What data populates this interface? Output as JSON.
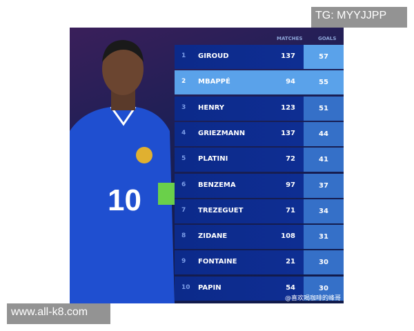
{
  "table": {
    "headers": {
      "matches": "MATCHES",
      "goals": "GOALS"
    },
    "rows": [
      {
        "rank": "1",
        "name": "GIROUD",
        "matches": "137",
        "goals": "57"
      },
      {
        "rank": "2",
        "name": "MBAPPÉ",
        "matches": "94",
        "goals": "55"
      },
      {
        "rank": "3",
        "name": "HENRY",
        "matches": "123",
        "goals": "51"
      },
      {
        "rank": "4",
        "name": "GRIEZMANN",
        "matches": "137",
        "goals": "44"
      },
      {
        "rank": "5",
        "name": "PLATINI",
        "matches": "72",
        "goals": "41"
      },
      {
        "rank": "6",
        "name": "BENZEMA",
        "matches": "97",
        "goals": "37"
      },
      {
        "rank": "7",
        "name": "TREZEGUET",
        "matches": "71",
        "goals": "34"
      },
      {
        "rank": "8",
        "name": "ZIDANE",
        "matches": "108",
        "goals": "31"
      },
      {
        "rank": "9",
        "name": "FONTAINE",
        "matches": "21",
        "goals": "30"
      },
      {
        "rank": "10",
        "name": "PAPIN",
        "matches": "54",
        "goals": "30"
      }
    ],
    "highlight_color": "#5aa2ea"
  },
  "player": {
    "shirt_number": "10"
  },
  "watermark": "@喜欢喝咖啡的峰哥",
  "overlays": {
    "top": "TG: MYYJJPP",
    "bottom": "www.all-k8.com"
  }
}
